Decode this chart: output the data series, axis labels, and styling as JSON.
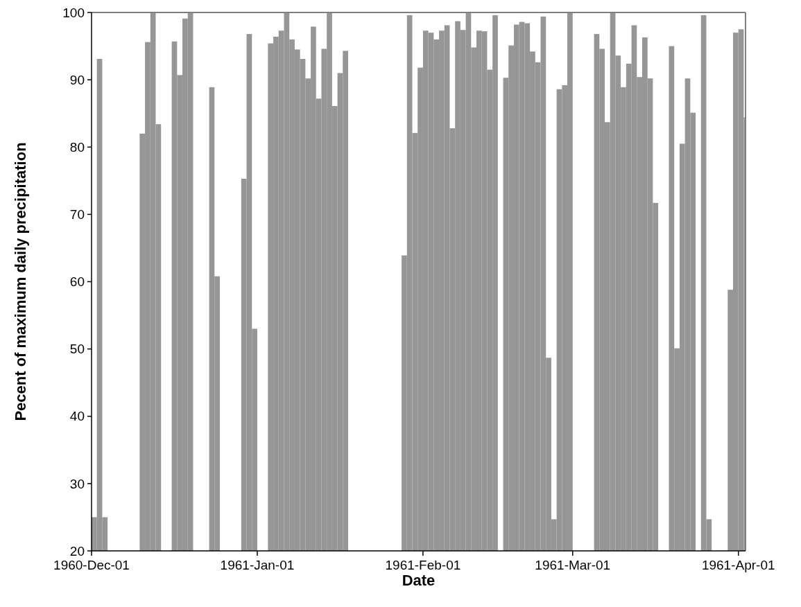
{
  "chart_data": {
    "type": "bar",
    "xlabel": "Date",
    "ylabel": "Pecent of maximum daily precipitation",
    "color": "#969696",
    "x": [
      "1960-12-01",
      "1960-12-02",
      "1960-12-03",
      "1960-12-10",
      "1960-12-11",
      "1960-12-12",
      "1960-12-13",
      "1960-12-16",
      "1960-12-17",
      "1960-12-18",
      "1960-12-19",
      "1960-12-23",
      "1960-12-24",
      "1960-12-29",
      "1960-12-30",
      "1960-12-31",
      "1961-01-03",
      "1961-01-04",
      "1961-01-05",
      "1961-01-06",
      "1961-01-07",
      "1961-01-08",
      "1961-01-09",
      "1961-01-10",
      "1961-01-11",
      "1961-01-12",
      "1961-01-13",
      "1961-01-14",
      "1961-01-15",
      "1961-01-16",
      "1961-01-17",
      "1961-01-28",
      "1961-01-29",
      "1961-01-30",
      "1961-01-31",
      "1961-02-01",
      "1961-02-02",
      "1961-02-03",
      "1961-02-04",
      "1961-02-05",
      "1961-02-06",
      "1961-02-07",
      "1961-02-08",
      "1961-02-09",
      "1961-02-10",
      "1961-02-11",
      "1961-02-12",
      "1961-02-13",
      "1961-02-14",
      "1961-02-16",
      "1961-02-17",
      "1961-02-18",
      "1961-02-19",
      "1961-02-20",
      "1961-02-21",
      "1961-02-22",
      "1961-02-23",
      "1961-02-24",
      "1961-02-25",
      "1961-02-26",
      "1961-02-27",
      "1961-02-28",
      "1961-03-05",
      "1961-03-06",
      "1961-03-07",
      "1961-03-08",
      "1961-03-09",
      "1961-03-10",
      "1961-03-11",
      "1961-03-12",
      "1961-03-13",
      "1961-03-14",
      "1961-03-15",
      "1961-03-16",
      "1961-03-19",
      "1961-03-20",
      "1961-03-21",
      "1961-03-22",
      "1961-03-23",
      "1961-03-25",
      "1961-03-26",
      "1961-03-30",
      "1961-03-31",
      "1961-04-01",
      "1961-04-02"
    ],
    "values": [
      25,
      93.1,
      25,
      82,
      95.6,
      100,
      83.4,
      95.7,
      90.7,
      99.1,
      100,
      88.9,
      60.8,
      75.3,
      96.8,
      53,
      95.4,
      96.4,
      97.3,
      100,
      96,
      94.5,
      93.1,
      90.2,
      97.9,
      87.2,
      94.6,
      100,
      86.1,
      91,
      94.3,
      63.9,
      99.6,
      82.1,
      91.8,
      97.3,
      97,
      96,
      97.3,
      98.1,
      82.8,
      98.7,
      97.4,
      100,
      94.8,
      97.3,
      97.2,
      91.5,
      99.6,
      90.3,
      95.1,
      98.2,
      98.6,
      98.4,
      94.2,
      92.6,
      99.4,
      48.7,
      24.7,
      88.6,
      89.2,
      100,
      96.8,
      94.6,
      83.7,
      100,
      93.6,
      88.9,
      92.4,
      98.1,
      90.4,
      96.3,
      90.2,
      71.7,
      95,
      50.1,
      80.5,
      90.2,
      85.1,
      99.6,
      24.7,
      58.8,
      97,
      97.5,
      84.4
    ],
    "xlim": [
      "1960-12-01",
      "1961-04-02T08:00"
    ],
    "xticks": [
      {
        "value": "1960-12-01",
        "label": "1960-Dec-01"
      },
      {
        "value": "1961-01-01",
        "label": "1961-Jan-01"
      },
      {
        "value": "1961-02-01",
        "label": "1961-Feb-01"
      },
      {
        "value": "1961-03-01",
        "label": "1961-Mar-01"
      },
      {
        "value": "1961-04-01",
        "label": "1961-Apr-01"
      }
    ],
    "ylim": [
      20,
      100
    ],
    "yticks": [
      20,
      30,
      40,
      50,
      60,
      70,
      80,
      90,
      100
    ]
  }
}
